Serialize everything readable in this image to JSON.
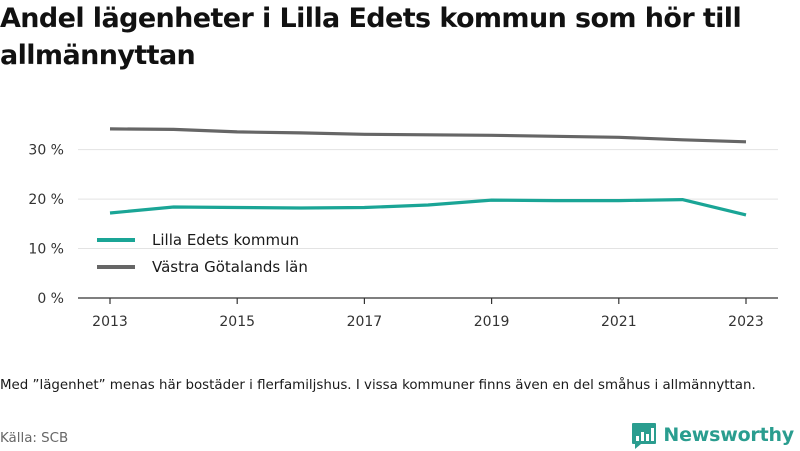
{
  "title": "Andel lägenheter i Lilla Edets kommun som hör till allmännyttan",
  "note": "Med ”lägenhet” menas här bostäder i flerfamiljshus. I vissa kommuner finns även en del småhus i allmännyttan.",
  "source": "Källa: SCB",
  "brand": {
    "name": "Newsworthy",
    "logo_icon": "newsworthy-logo-icon"
  },
  "colors": {
    "lilla_edet": "#1aa596",
    "vastra_gotaland": "#666666",
    "grid": "#e3e3e3",
    "axis": "#333333",
    "brand": "#2a9d8f"
  },
  "chart_data": {
    "type": "line",
    "title": "Andel lägenheter i Lilla Edets kommun som hör till allmännyttan",
    "xlabel": "",
    "ylabel": "",
    "x": [
      2013,
      2014,
      2015,
      2016,
      2017,
      2018,
      2019,
      2020,
      2021,
      2022,
      2023
    ],
    "xticks": [
      "2013",
      "2015",
      "2017",
      "2019",
      "2021",
      "2023"
    ],
    "yticks": [
      "0 %",
      "10 %",
      "20 %",
      "30 %"
    ],
    "ylim": [
      0,
      36
    ],
    "grid": true,
    "legend_position": "left",
    "series": [
      {
        "name": "Lilla Edets kommun",
        "color": "#1aa596",
        "values": [
          17.2,
          18.4,
          18.3,
          18.2,
          18.3,
          18.8,
          19.8,
          19.7,
          19.7,
          19.9,
          16.8
        ]
      },
      {
        "name": "Västra Götalands län",
        "color": "#666666",
        "values": [
          34.2,
          34.1,
          33.6,
          33.4,
          33.1,
          33.0,
          32.9,
          32.7,
          32.5,
          32.0,
          31.6
        ]
      }
    ]
  }
}
